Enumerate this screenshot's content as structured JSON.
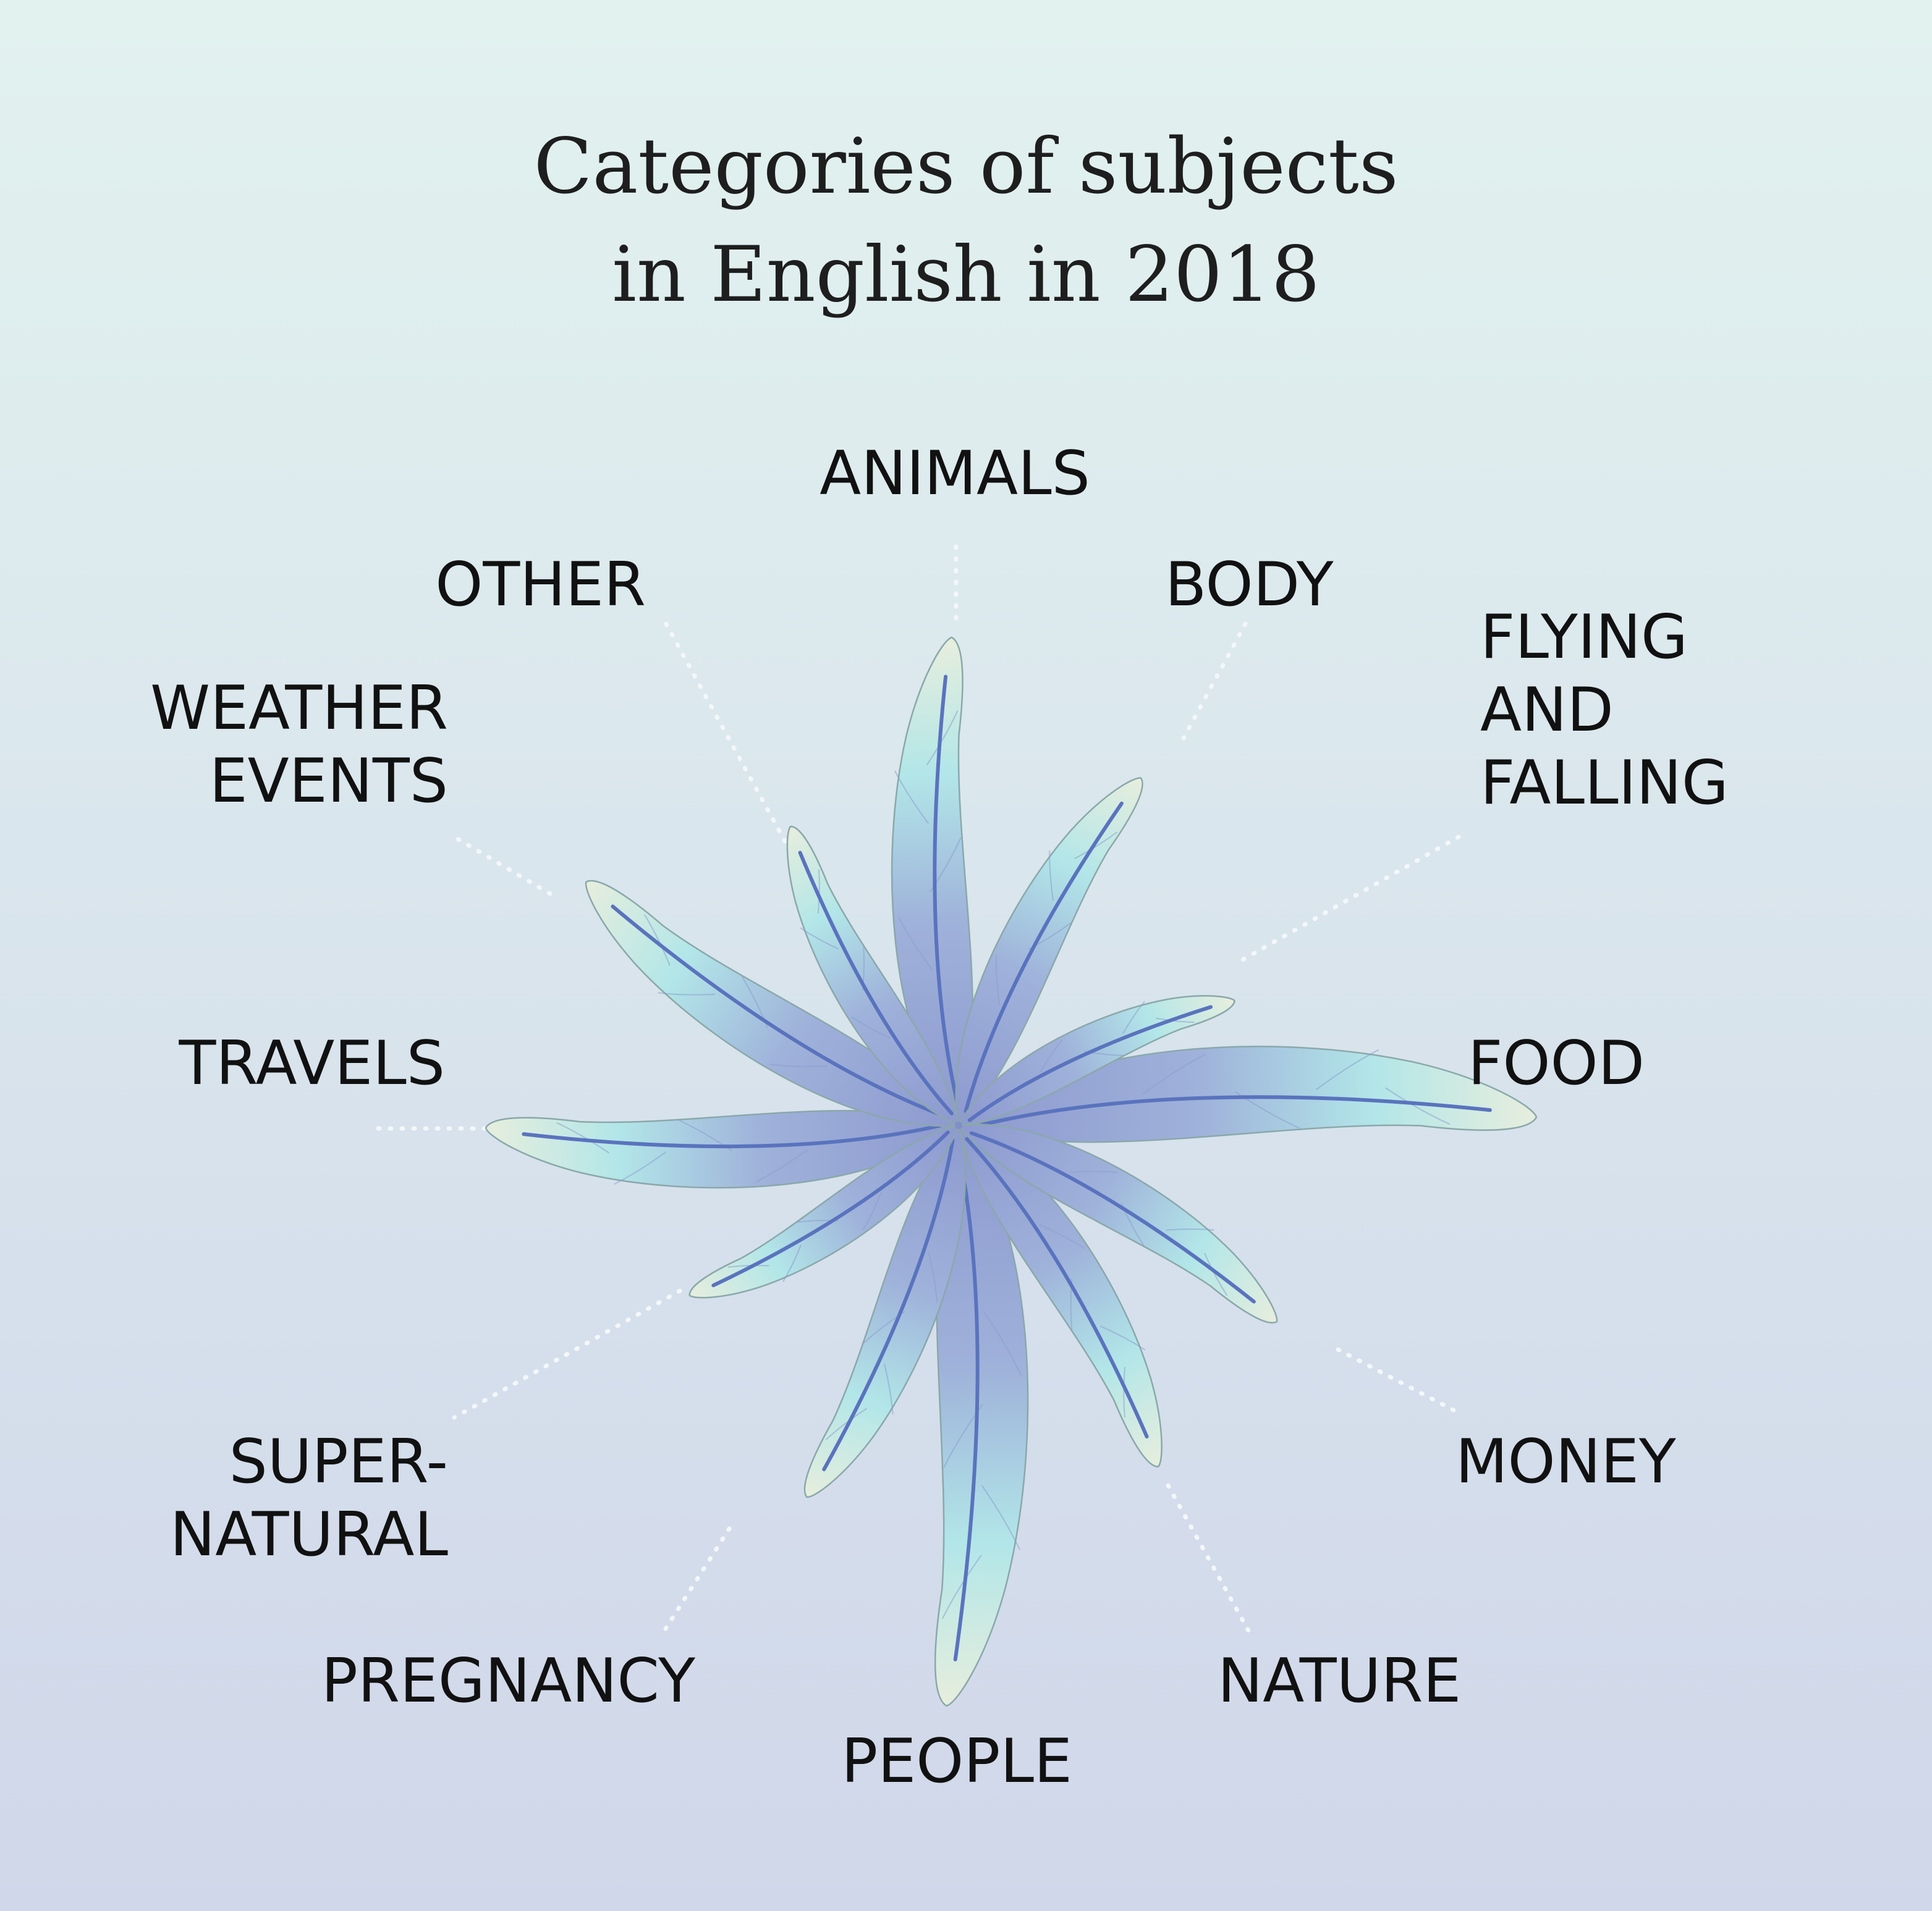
{
  "title": {
    "line1": "Categories of subjects",
    "line2": "in English in 2018"
  },
  "colors": {
    "background_top": "#e2f2ef",
    "background_bottom": "#d0d7ea",
    "petal_center": "#8d99cf",
    "petal_mid": "#b2e6e8",
    "petal_tip": "#e7eedd",
    "vein": "#5a73be"
  },
  "categories": [
    {
      "id": "animals",
      "lines": [
        "ANIMALS"
      ]
    },
    {
      "id": "body",
      "lines": [
        "BODY"
      ]
    },
    {
      "id": "flying-and-falling",
      "lines": [
        "FLYING",
        "AND",
        "FALLING"
      ]
    },
    {
      "id": "food",
      "lines": [
        "FOOD"
      ]
    },
    {
      "id": "money",
      "lines": [
        "MONEY"
      ]
    },
    {
      "id": "nature",
      "lines": [
        "NATURE"
      ]
    },
    {
      "id": "people",
      "lines": [
        "PEOPLE"
      ]
    },
    {
      "id": "pregnancy",
      "lines": [
        "PREGNANCY"
      ]
    },
    {
      "id": "supernatural",
      "lines": [
        "SUPER-",
        "NATURAL"
      ]
    },
    {
      "id": "travels",
      "lines": [
        "TRAVELS"
      ]
    },
    {
      "id": "weather-events",
      "lines": [
        "WEATHER",
        "EVENTS"
      ]
    },
    {
      "id": "other",
      "lines": [
        "OTHER"
      ]
    }
  ]
}
